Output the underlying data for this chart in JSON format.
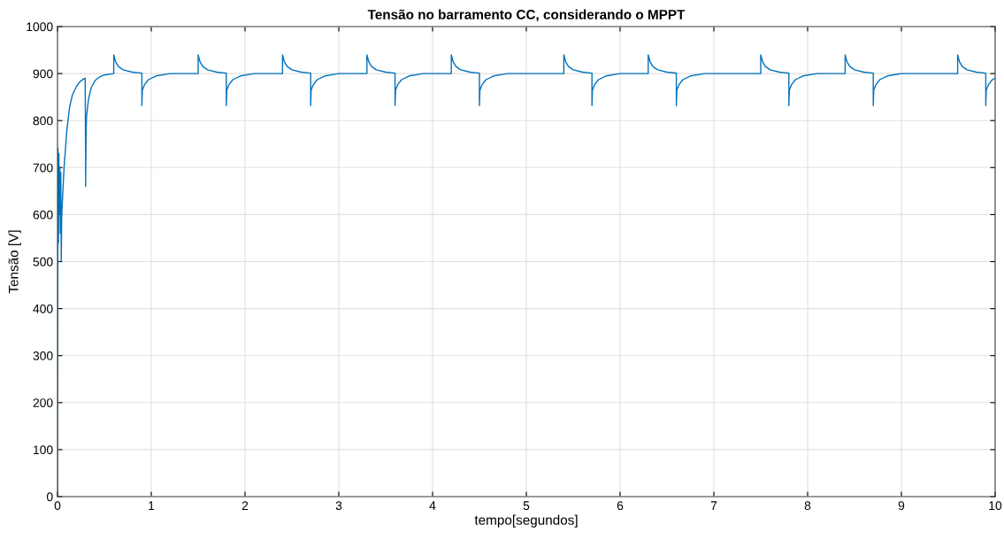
{
  "chart_data": {
    "type": "line",
    "title": "Tensão no barramento CC, considerando o MPPT",
    "xlabel": "tempo[segundos]",
    "ylabel": "Tensão [V]",
    "xlim": [
      0,
      10
    ],
    "xticks": [
      0,
      1,
      2,
      3,
      4,
      5,
      6,
      7,
      8,
      9,
      10
    ],
    "ylim": [
      0,
      1000
    ],
    "yticks": [
      0,
      100,
      200,
      300,
      400,
      500,
      600,
      700,
      800,
      900,
      1000
    ],
    "grid": true,
    "series": [
      {
        "color": "#0072bd",
        "x": [
          0,
          0.005,
          0.01,
          0.015,
          0.02,
          0.025,
          0.03,
          0.035,
          0.04,
          0.045,
          0.05,
          0.07,
          0.1,
          0.13,
          0.16,
          0.2,
          0.24,
          0.29,
          0.295,
          0.3,
          0.3,
          0.305,
          0.31,
          0.33,
          0.36,
          0.4,
          0.45,
          0.5,
          0.6,
          0.6,
          0.62,
          0.65,
          0.7,
          0.8,
          0.9,
          0.9,
          0.905,
          0.93,
          0.97,
          1.05,
          1.2,
          1.5,
          1.5,
          1.52,
          1.55,
          1.6,
          1.7,
          1.8,
          1.8,
          1.805,
          1.83,
          1.87,
          1.95,
          2.1,
          2.4,
          2.4,
          2.42,
          2.45,
          2.5,
          2.6,
          2.7,
          2.7,
          2.705,
          2.73,
          2.77,
          2.85,
          3.0,
          3.3,
          3.3,
          3.32,
          3.35,
          3.4,
          3.5,
          3.6,
          3.6,
          3.605,
          3.63,
          3.67,
          3.75,
          3.9,
          4.2,
          4.2,
          4.22,
          4.25,
          4.3,
          4.4,
          4.5,
          4.5,
          4.505,
          4.53,
          4.57,
          4.65,
          4.8,
          5.4,
          5.4,
          5.42,
          5.45,
          5.5,
          5.6,
          5.7,
          5.7,
          5.705,
          5.73,
          5.77,
          5.85,
          6.0,
          6.3,
          6.3,
          6.32,
          6.35,
          6.4,
          6.5,
          6.6,
          6.6,
          6.605,
          6.63,
          6.67,
          6.75,
          6.9,
          7.5,
          7.5,
          7.52,
          7.55,
          7.6,
          7.7,
          7.8,
          7.8,
          7.805,
          7.83,
          7.87,
          7.95,
          8.1,
          8.4,
          8.4,
          8.42,
          8.45,
          8.5,
          8.6,
          8.7,
          8.7,
          8.705,
          8.73,
          8.77,
          8.85,
          9.0,
          9.6,
          9.6,
          9.62,
          9.65,
          9.7,
          9.8,
          9.9,
          9.9,
          9.905,
          9.93,
          9.97,
          10
        ],
        "values": [
          0,
          740,
          540,
          730,
          600,
          700,
          560,
          690,
          500,
          600,
          620,
          700,
          780,
          830,
          855,
          872,
          883,
          890,
          890,
          715,
          660,
          780,
          810,
          845,
          870,
          885,
          893,
          897,
          900,
          940,
          925,
          915,
          908,
          903,
          901,
          832,
          865,
          877,
          887,
          895,
          900,
          900,
          940,
          925,
          915,
          908,
          903,
          901,
          832,
          865,
          877,
          887,
          895,
          900,
          900,
          940,
          925,
          915,
          908,
          903,
          901,
          832,
          865,
          877,
          887,
          895,
          900,
          900,
          940,
          925,
          915,
          908,
          903,
          901,
          832,
          865,
          877,
          887,
          895,
          900,
          900,
          940,
          925,
          915,
          908,
          903,
          901,
          832,
          865,
          877,
          887,
          895,
          900,
          900,
          940,
          925,
          915,
          908,
          903,
          901,
          832,
          865,
          877,
          887,
          895,
          900,
          900,
          940,
          925,
          915,
          908,
          903,
          901,
          832,
          865,
          877,
          887,
          895,
          900,
          900,
          940,
          925,
          915,
          908,
          903,
          901,
          832,
          865,
          877,
          887,
          895,
          900,
          900,
          940,
          925,
          915,
          908,
          903,
          901,
          832,
          865,
          877,
          887,
          895,
          900,
          900,
          940,
          925,
          915,
          908,
          903,
          901,
          832,
          865,
          877,
          887,
          890
        ]
      }
    ]
  }
}
